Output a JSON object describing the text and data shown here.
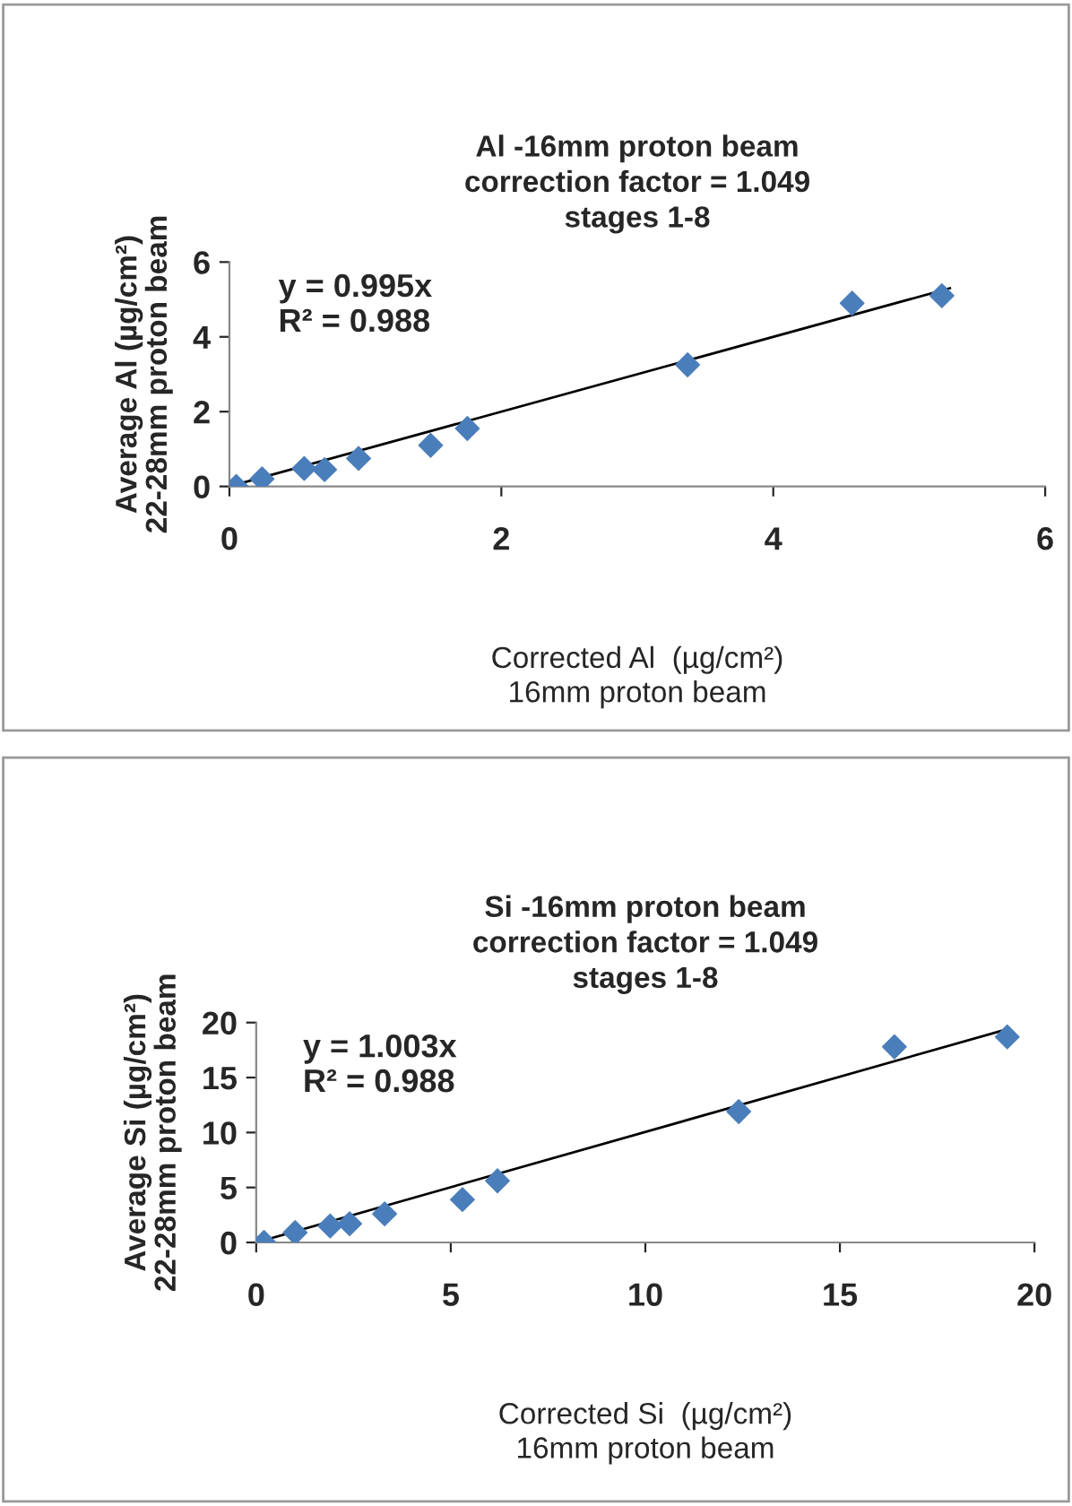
{
  "chart_data": [
    {
      "type": "scatter",
      "title": "Al -16mm proton beam\ncorrection factor = 1.049\nstages 1-8",
      "xlabel": "Corrected Al  (µg/cm²)\n16mm proton beam",
      "ylabel": "Average Al (µg/cm²)\n22-28mm proton beam",
      "annotations": [
        "y = 0.995x\nR² = 0.988"
      ],
      "grid": false,
      "legend": false,
      "xlim": [
        0,
        6
      ],
      "xticks": [
        0,
        2,
        4,
        6
      ],
      "ylim": [
        0,
        6
      ],
      "yticks": [
        0,
        2,
        4,
        6
      ],
      "series": [
        {
          "color": "#4a7ebb",
          "marker": "diamond",
          "x": [
            0.05,
            0.24,
            0.55,
            0.7,
            0.95,
            1.48,
            1.75,
            3.37,
            4.58,
            5.24
          ],
          "values": [
            0.0,
            0.2,
            0.48,
            0.45,
            0.75,
            1.1,
            1.55,
            3.25,
            4.9,
            5.1
          ]
        },
        {
          "type": "line",
          "marker": "none",
          "color": "#000000",
          "x": [
            0,
            5.3
          ],
          "values": [
            0,
            5.3
          ]
        }
      ]
    },
    {
      "type": "scatter",
      "title": "Si -16mm proton beam\ncorrection factor = 1.049\nstages 1-8",
      "xlabel": "Corrected Si  (µg/cm²)\n16mm proton beam",
      "ylabel": "Average Si (µg/cm²)\n22-28mm proton beam",
      "annotations": [
        "y = 1.003x\nR² = 0.988"
      ],
      "grid": false,
      "legend": false,
      "xlim": [
        0,
        20
      ],
      "xticks": [
        0,
        5,
        10,
        15,
        20
      ],
      "ylim": [
        0,
        20
      ],
      "yticks": [
        0,
        5,
        10,
        15,
        20
      ],
      "series": [
        {
          "color": "#4a7ebb",
          "marker": "diamond",
          "x": [
            0.2,
            1.0,
            1.9,
            2.4,
            3.3,
            5.3,
            6.2,
            12.4,
            16.4,
            19.3
          ],
          "values": [
            0.0,
            0.9,
            1.5,
            1.7,
            2.6,
            3.9,
            5.6,
            11.9,
            17.8,
            18.7
          ]
        },
        {
          "type": "line",
          "marker": "none",
          "color": "#000000",
          "x": [
            0,
            19.3
          ],
          "values": [
            0,
            19.4
          ]
        }
      ]
    }
  ]
}
